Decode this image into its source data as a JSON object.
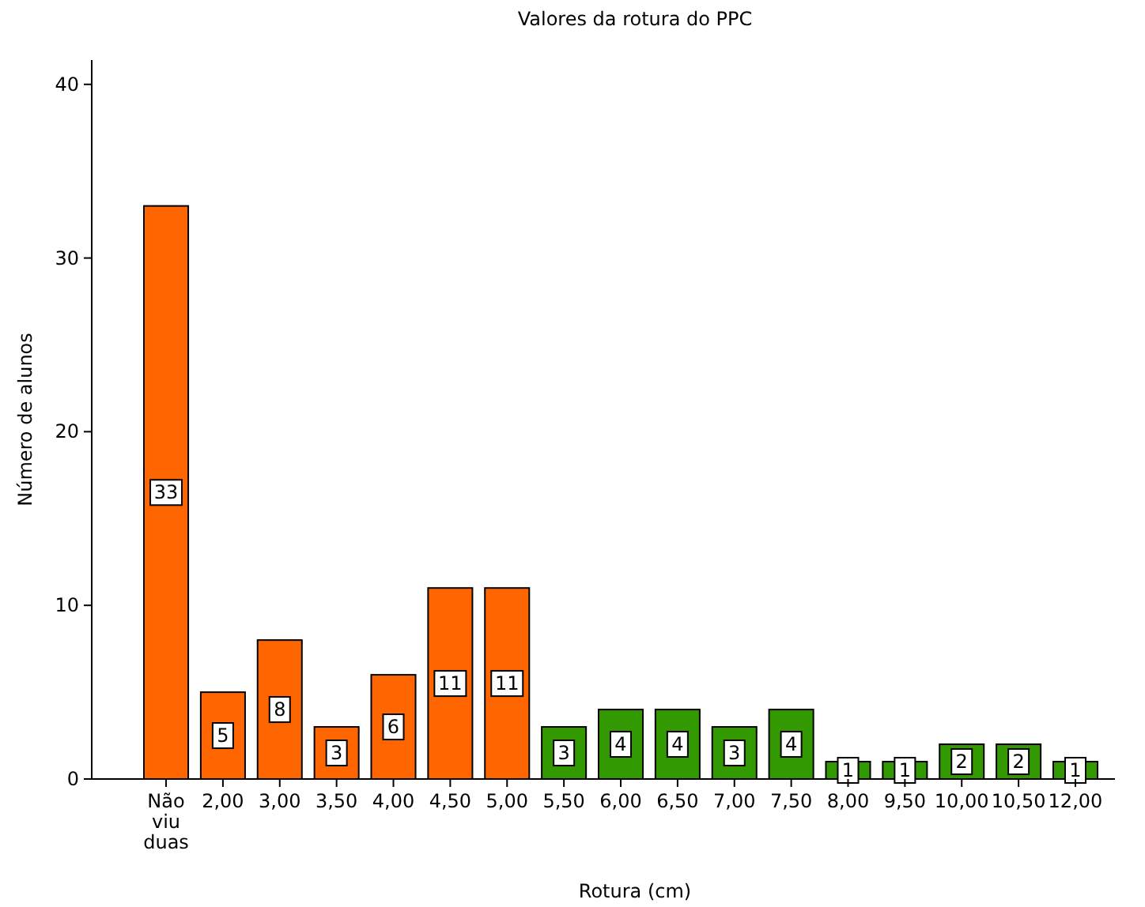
{
  "chart_data": {
    "type": "bar",
    "title": "Valores da rotura do PPC",
    "xlabel": "Rotura (cm)",
    "ylabel": "Número de alunos",
    "categories": [
      "Não viu duas",
      "2,00",
      "3,00",
      "3,50",
      "4,00",
      "4,50",
      "5,00",
      "5,50",
      "6,00",
      "6,50",
      "7,00",
      "7,50",
      "8,00",
      "9,50",
      "10,00",
      "10,50",
      "12,00"
    ],
    "values": [
      33,
      5,
      8,
      3,
      6,
      11,
      11,
      3,
      4,
      4,
      3,
      4,
      1,
      1,
      2,
      2,
      1
    ],
    "colors": [
      "#ff6600",
      "#ff6600",
      "#ff6600",
      "#ff6600",
      "#ff6600",
      "#ff6600",
      "#ff6600",
      "#339900",
      "#339900",
      "#339900",
      "#339900",
      "#339900",
      "#339900",
      "#339900",
      "#339900",
      "#339900",
      "#339900"
    ],
    "ylim": [
      0,
      41.4
    ],
    "yticks": [
      0,
      10,
      20,
      30,
      40
    ],
    "grid": false,
    "data_labels": true
  }
}
